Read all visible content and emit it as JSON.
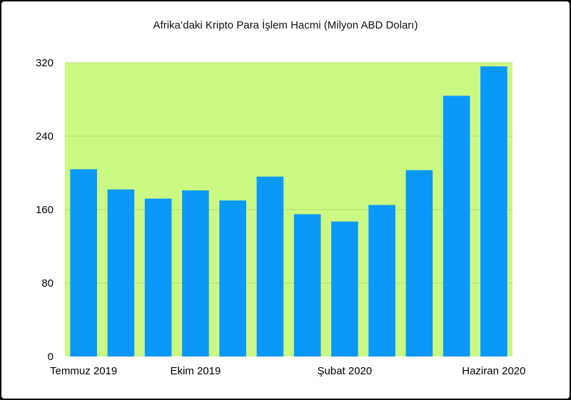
{
  "chart_data": {
    "type": "bar",
    "title": "Afrika’daki Kripto Para İşlem Hacmi (Milyon ABD Doları)",
    "xlabel": "",
    "ylabel": "",
    "ylim": [
      0,
      320
    ],
    "yticks": [
      0,
      80,
      160,
      240,
      320
    ],
    "categories": [
      "Temmuz 2019",
      "",
      "",
      "Ekim 2019",
      "",
      "",
      "",
      "Şubat 2020",
      "",
      "",
      "",
      "Haziran 2020"
    ],
    "x_tick_labels": [
      "Temmuz 2019",
      "Ekim 2019",
      "Şubat 2020",
      "Haziran 2020"
    ],
    "values": [
      204,
      182,
      172,
      181,
      170,
      196,
      155,
      147,
      165,
      203,
      284,
      316
    ],
    "grid": true,
    "colors": {
      "bar": "#0a99fb",
      "plot_background": "#ccf983",
      "grid": "#b6dc74"
    }
  }
}
